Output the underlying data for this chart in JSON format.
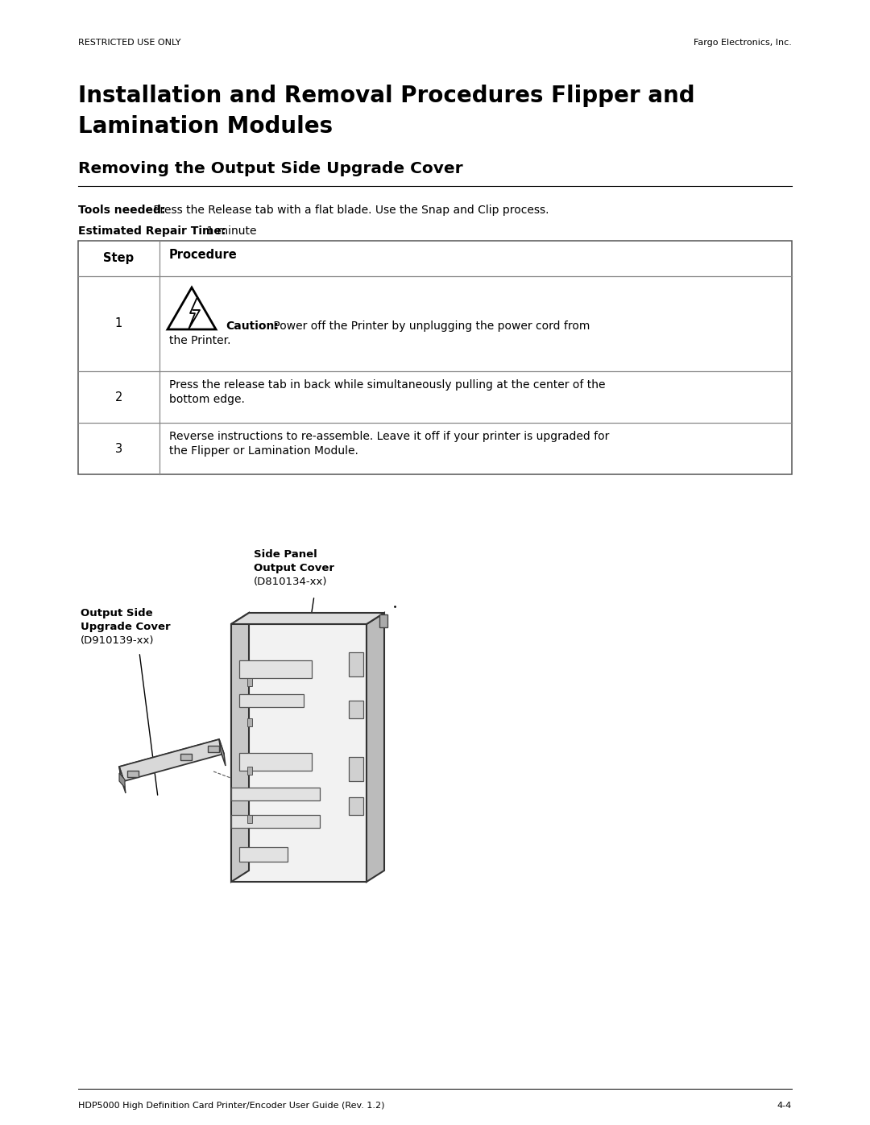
{
  "bg_color": "#ffffff",
  "header_left": "RESTRICTED USE ONLY",
  "header_right": "Fargo Electronics, Inc.",
  "title_line1": "Installation and Removal Procedures Flipper and",
  "title_line2": "Lamination Modules",
  "section_title": "Removing the Output Side Upgrade Cover",
  "tools_bold": "Tools needed:",
  "tools_text": " Press the Release tab with a flat blade. Use the Snap and Clip process.",
  "repair_bold": "Estimated Repair Time:",
  "repair_text": " 1 minute",
  "table_col1_header": "Step",
  "table_col2_header": "Procedure",
  "row1_step": "1",
  "row1_caution_bold": "Caution:",
  "row1_caution_text_a": " Power off the Printer by unplugging the power cord from",
  "row1_caution_text_b": "the Printer.",
  "row2_step": "2",
  "row2_text_a": "Press the release tab in back while simultaneously pulling at the center of the",
  "row2_text_b": "bottom edge.",
  "row3_step": "3",
  "row3_text_a": "Reverse instructions to re-assemble. Leave it off if your printer is upgraded for",
  "row3_text_b": "the Flipper or Lamination Module.",
  "label1_line1": "Output Side",
  "label1_line2": "Upgrade Cover",
  "label1_line3": "(D910139-xx)",
  "label2_line1": "Side Panel",
  "label2_line2": "Output Cover",
  "label2_line3": "(D810134-xx)",
  "footer_left": "HDP5000 High Definition Card Printer/Encoder User Guide (Rev. 1.2)",
  "footer_right": "4-4"
}
